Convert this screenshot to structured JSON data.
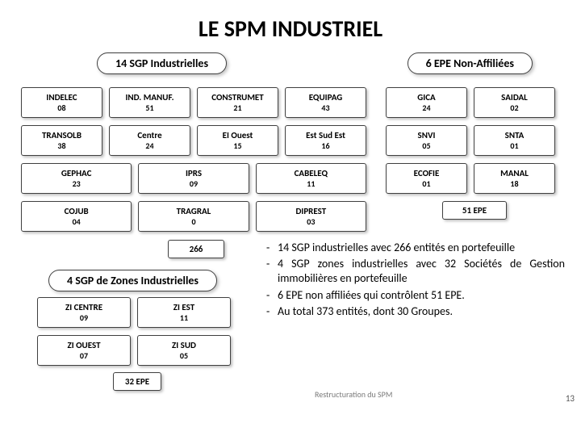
{
  "title": "LE SPM INDUSTRIEL",
  "headers": {
    "left": "14 SGP Industrielles",
    "right": "6 EPE Non-Affiliées"
  },
  "sgp_industrielles": {
    "rows": [
      [
        {
          "name": "INDELEC",
          "num": "08"
        },
        {
          "name": "IND. MANUF.",
          "num": "51"
        },
        {
          "name": "CONSTRUMET",
          "num": "21"
        },
        {
          "name": "EQUIPAG",
          "num": "43"
        }
      ],
      [
        {
          "name": "TRANSOLB",
          "num": "38"
        },
        {
          "name": "Centre",
          "num": "24"
        },
        {
          "name": "EI Ouest",
          "num": "15"
        },
        {
          "name": "Est Sud Est",
          "num": "16"
        }
      ],
      [
        {
          "name": "GEPHAC",
          "num": "23"
        },
        {
          "name": "IPRS",
          "num": "09"
        },
        {
          "name": "CABELEQ",
          "num": "11"
        }
      ],
      [
        {
          "name": "COJUB",
          "num": "04"
        },
        {
          "name": "TRAGRAL",
          "num": "0"
        },
        {
          "name": "DIPREST",
          "num": "03"
        }
      ]
    ],
    "total_label": "266"
  },
  "epe_non_affiliees": {
    "rows": [
      [
        {
          "name": "GICA",
          "num": "24"
        },
        {
          "name": "SAIDAL",
          "num": "02"
        }
      ],
      [
        {
          "name": "SNVI",
          "num": "05"
        },
        {
          "name": "SNTA",
          "num": "01"
        }
      ],
      [
        {
          "name": "ECOFIE",
          "num": "01"
        },
        {
          "name": "MANAL",
          "num": "18"
        }
      ]
    ],
    "total_label": "51 EPE"
  },
  "zones": {
    "header": "4 SGP de Zones Industrielles",
    "rows": [
      [
        {
          "name": "ZI CENTRE",
          "num": "09"
        },
        {
          "name": "ZI EST",
          "num": "11"
        }
      ],
      [
        {
          "name": "ZI OUEST",
          "num": "07"
        },
        {
          "name": "ZI SUD",
          "num": "05"
        }
      ]
    ],
    "total_label": "32 EPE"
  },
  "bullets": [
    "14 SGP industrielles avec 266 entités en portefeuille",
    "4 SGP zones industrielles avec 32 Sociétés de Gestion immobilières en portefeuille",
    "6 EPE non affiliées qui contrôlent 51 EPE.",
    "Au total 373 entités, dont 30 Groupes."
  ],
  "footer_small": "Restructuration du SPM",
  "page_number": "13",
  "colors": {
    "border": "#404040",
    "text": "#000000",
    "background": "#ffffff",
    "shadow": "rgba(0,0,0,0.25)",
    "footer": "#7a7a7a"
  }
}
